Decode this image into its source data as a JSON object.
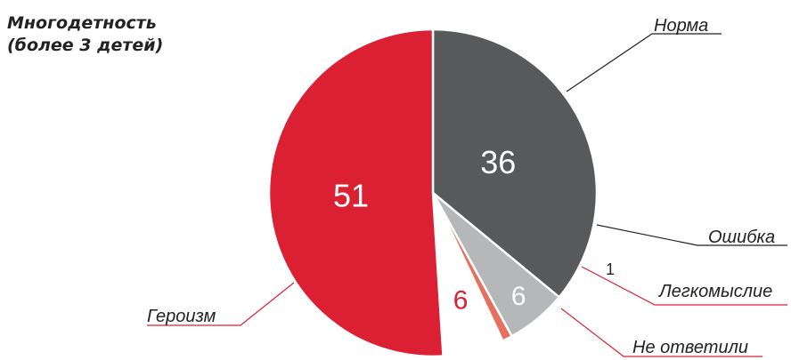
{
  "title_lines": [
    "Многодетность",
    "(более 3 детей)"
  ],
  "colors": {
    "norma": "#58595b",
    "oshibka": "#b6b7b9",
    "legkomyslie": "#e5705e",
    "ne_otvetili": "#ffffff",
    "geroizm": "#dc2033",
    "leader_line": "#231f20",
    "leader_line_red": "#dc2033"
  },
  "chart_data": {
    "type": "pie",
    "title": "Многодетность (более 3 детей)",
    "start_angle_deg": 0,
    "direction": "clockwise",
    "slices": [
      {
        "label": "Норма",
        "value": 36,
        "value_label": "36",
        "color": "#58595b"
      },
      {
        "label": "Ошибка",
        "value": 6,
        "value_label": "6",
        "color": "#b6b7b9"
      },
      {
        "label": "Легкомыслие",
        "value": 1,
        "value_label": "1",
        "color": "#e5705e"
      },
      {
        "label": "Не ответили",
        "value": 6,
        "value_label": "6",
        "color": "#ffffff"
      },
      {
        "label": "Героизм",
        "value": 51,
        "value_label": "51",
        "color": "#dc2033"
      }
    ]
  }
}
